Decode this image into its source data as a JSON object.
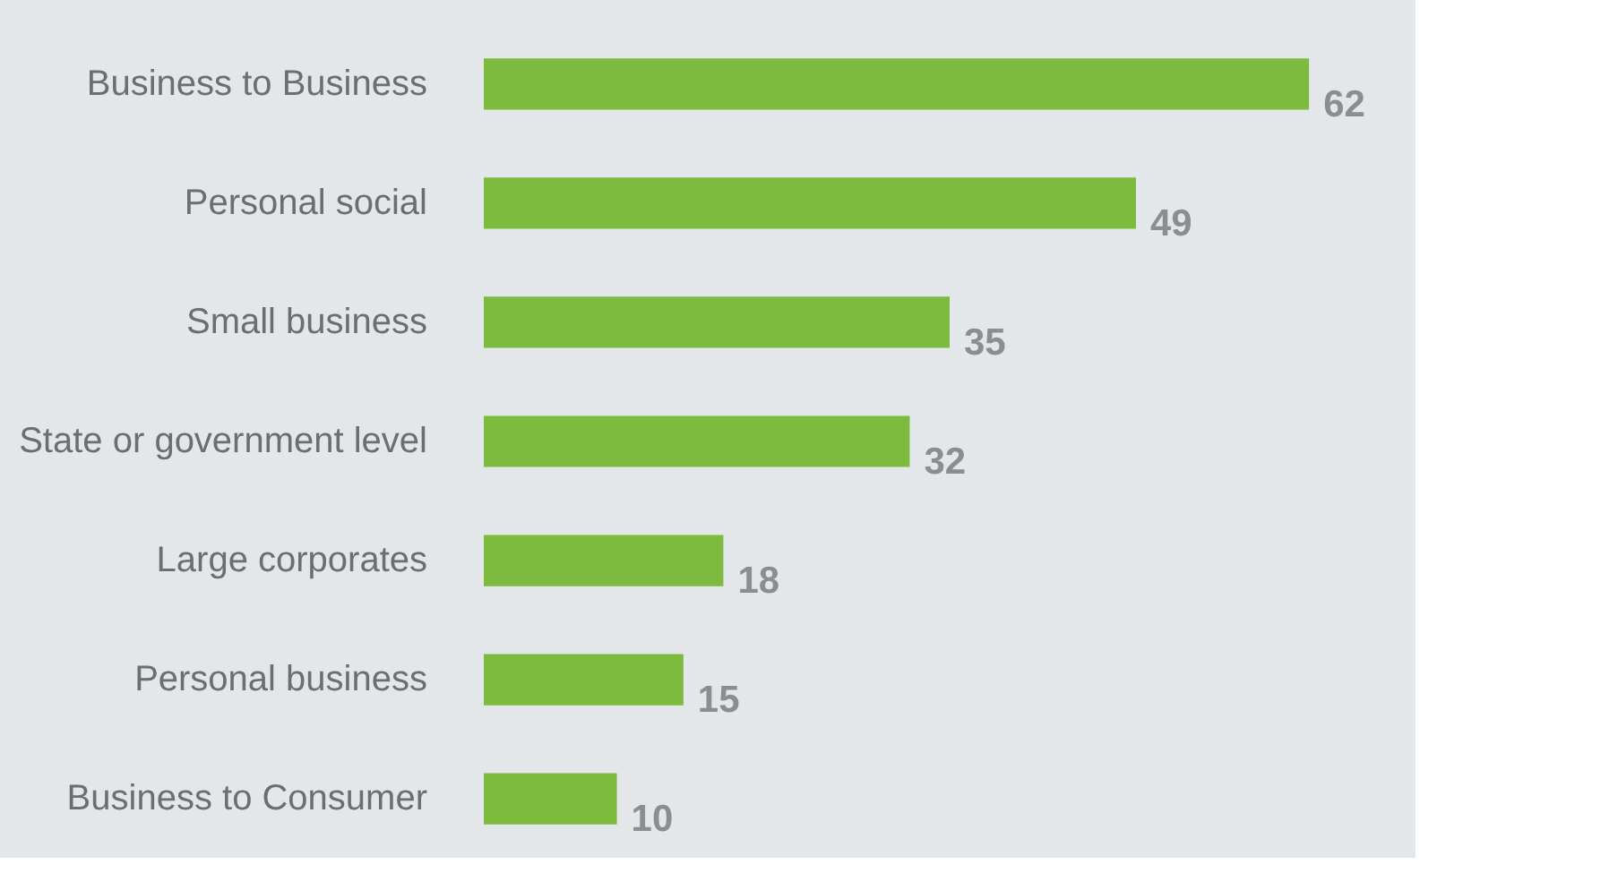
{
  "chart_data": {
    "type": "bar",
    "orientation": "horizontal",
    "categories": [
      "Business to Business",
      "Personal social",
      "Small business",
      "State or government level",
      "Large corporates",
      "Personal business",
      "Business to Consumer"
    ],
    "values": [
      62,
      49,
      35,
      32,
      18,
      15,
      10
    ],
    "color": "#7cbb3e",
    "data_labels": true,
    "xlim": [
      0,
      70
    ],
    "tick_labels": "y"
  }
}
